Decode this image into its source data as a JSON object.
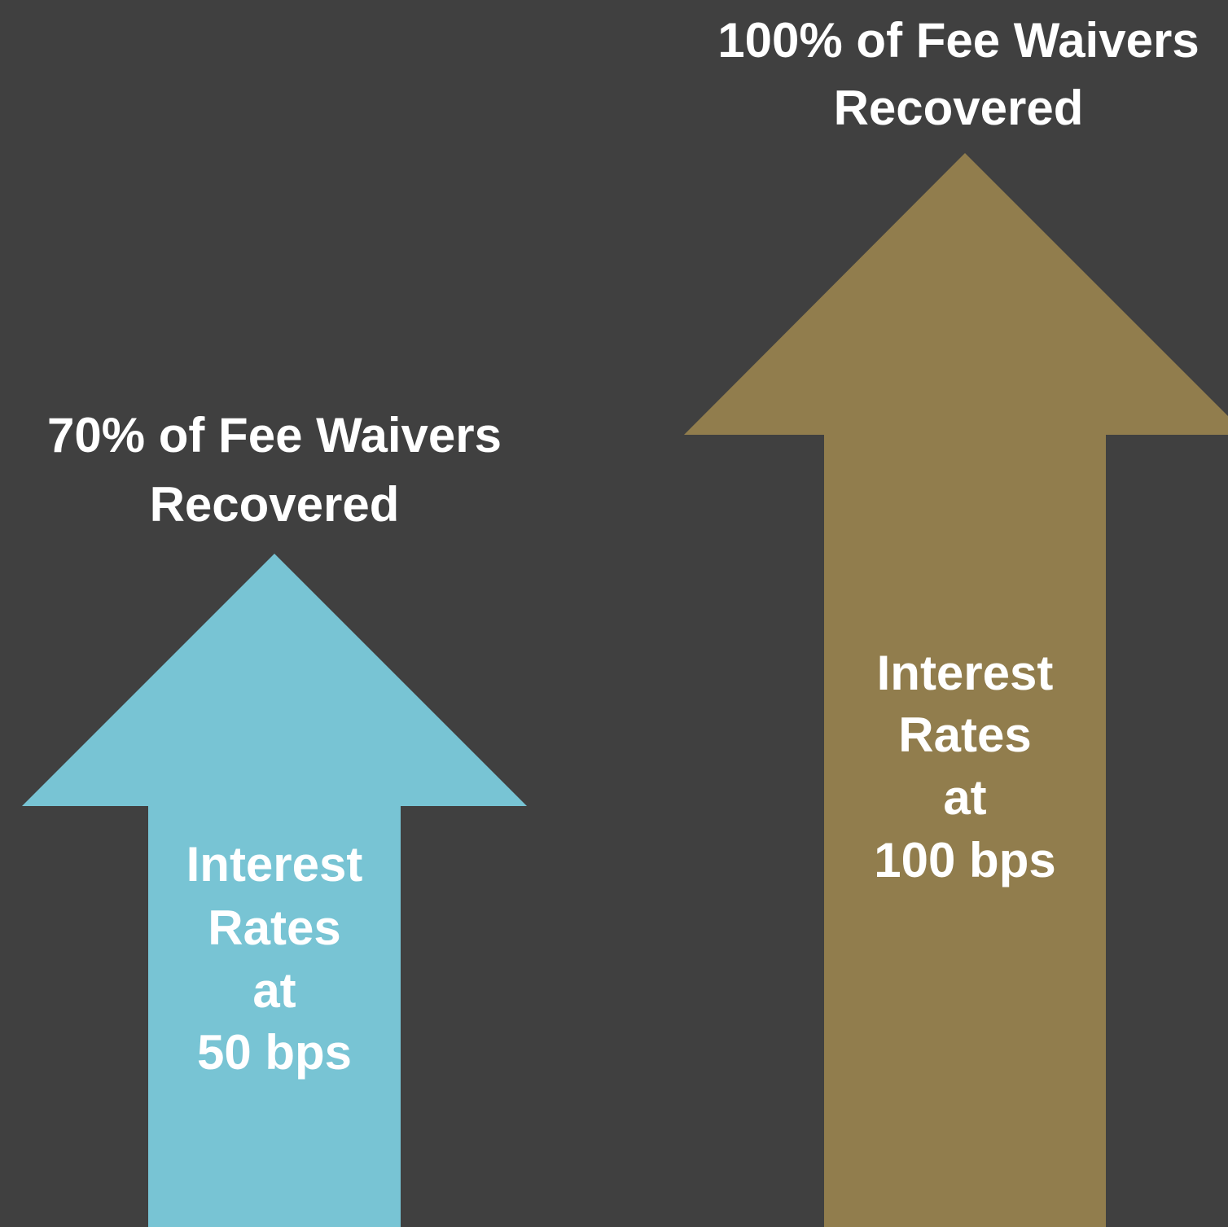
{
  "arrows": [
    {
      "caption": [
        "70% of Fee Waivers",
        "Recovered"
      ],
      "label": [
        "Interest",
        "Rates",
        "at",
        "50 bps"
      ],
      "color": "#78c4d4"
    },
    {
      "caption": [
        "100% of Fee Waivers",
        "Recovered"
      ],
      "label": [
        "Interest",
        "Rates",
        "at",
        "100 bps"
      ],
      "color": "#917d4d"
    }
  ]
}
